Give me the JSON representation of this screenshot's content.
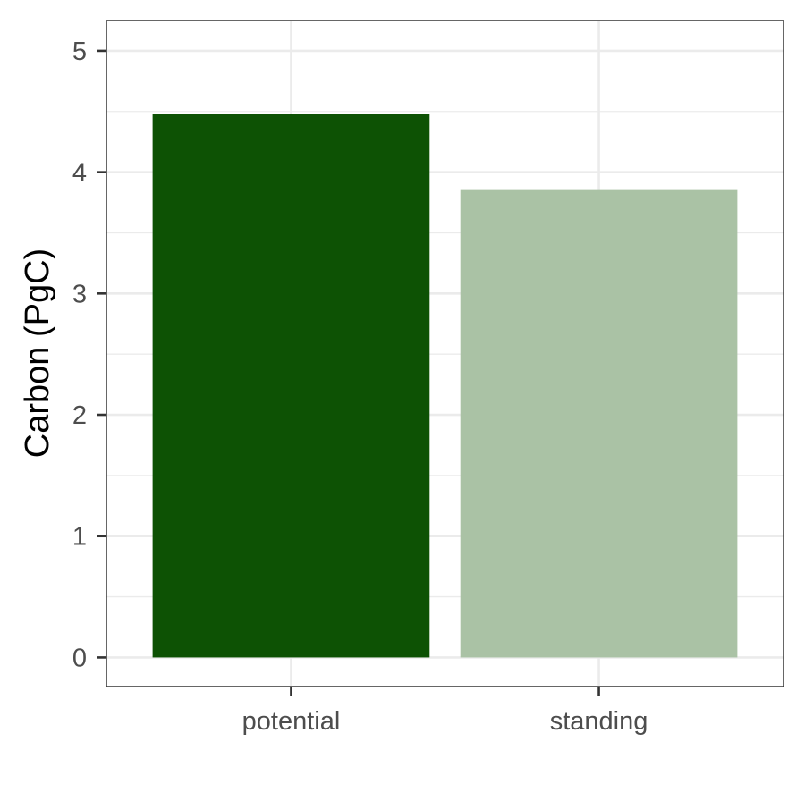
{
  "chart_data": {
    "type": "bar",
    "title": "",
    "xlabel": "",
    "ylabel": "Carbon (PgC)",
    "categories": [
      "potential",
      "standing"
    ],
    "values": [
      4.48,
      3.86
    ],
    "colors": [
      "#0d5204",
      "#aac2a5"
    ],
    "ylim": [
      -0.24,
      5.25
    ],
    "yticks": [
      0,
      1,
      2,
      3,
      4,
      5
    ],
    "ytick_labels": [
      "0",
      "1",
      "2",
      "3",
      "4",
      "5"
    ],
    "grid": true,
    "minor_grid": true,
    "legend": "none",
    "theme": "bw"
  }
}
